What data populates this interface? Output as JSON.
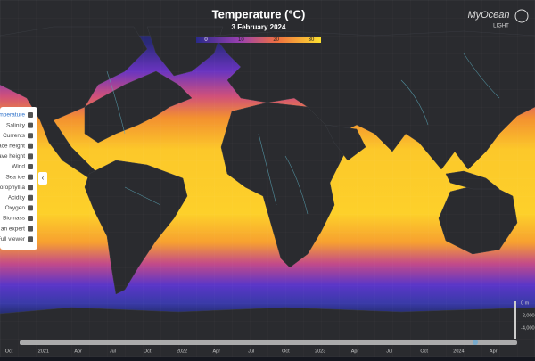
{
  "header": {
    "title": "Temperature (°C)",
    "date": "3 February 2024"
  },
  "colorbar": {
    "ticks": [
      "0",
      "10",
      "20",
      "30"
    ]
  },
  "logo": {
    "name": "MyOcean",
    "sub": "LIGHT"
  },
  "menu": {
    "items": [
      "Temperature",
      "Salinity",
      "Currents",
      "face height",
      "ave height",
      "Wind",
      "Sea ice",
      "lorophyll a",
      "Acidity",
      "Oxygen",
      "Biomass",
      "e an expert",
      "Full viewer"
    ]
  },
  "timeline": {
    "labels": [
      "Oct",
      "2021",
      "Apr",
      "Jul",
      "Oct",
      "2022",
      "Apr",
      "Jul",
      "Oct",
      "2023",
      "Apr",
      "Jul",
      "Oct",
      "2024",
      "Apr"
    ]
  },
  "depth": {
    "labels": [
      "0 m",
      "-2,000",
      "-4,000"
    ]
  }
}
